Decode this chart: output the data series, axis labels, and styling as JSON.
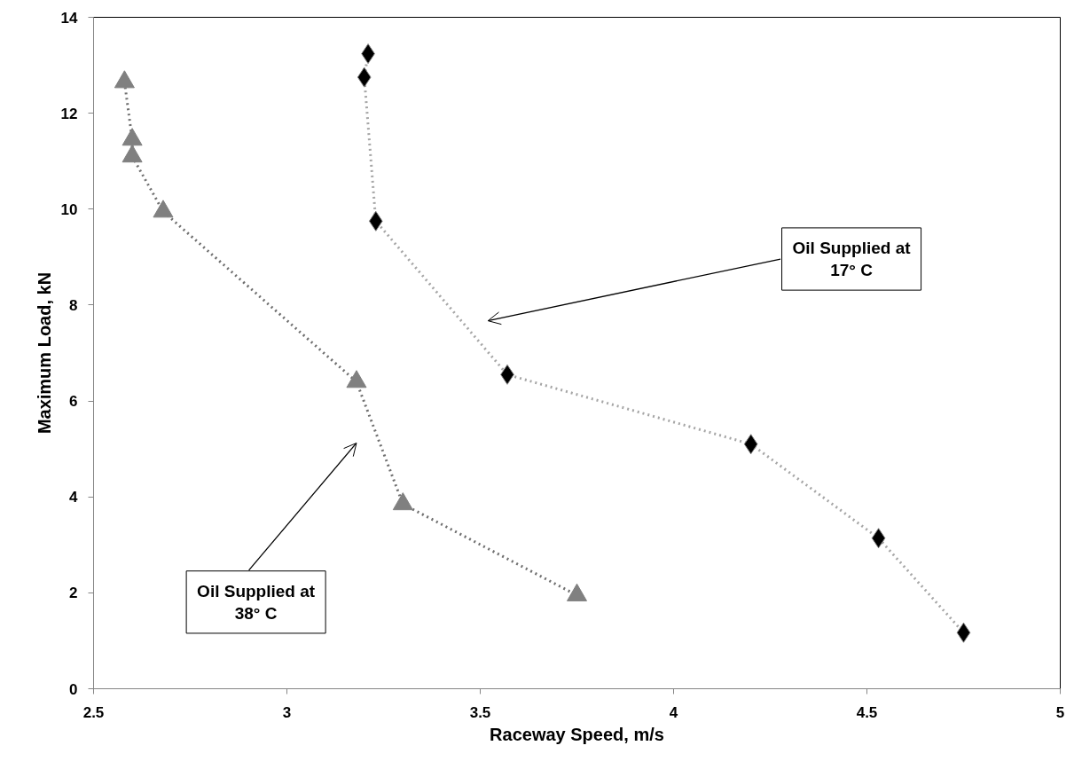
{
  "chart_data": {
    "type": "line",
    "xlabel": "Raceway Speed, m/s",
    "ylabel": "Maximum Load, kN",
    "xlim": [
      2.5,
      5
    ],
    "xticks": [
      2.5,
      3,
      3.5,
      4,
      4.5,
      5
    ],
    "ylim": [
      0,
      14
    ],
    "yticks": [
      0,
      2,
      4,
      6,
      8,
      10,
      12,
      14
    ],
    "grid": false,
    "line_style": "dotted",
    "series": [
      {
        "color": "#808080",
        "marker": "triangle",
        "x": [
          2.58,
          2.6,
          2.6,
          2.68,
          3.18,
          3.3,
          3.75
        ],
        "values": [
          12.65,
          11.45,
          11.1,
          9.95,
          6.4,
          3.85,
          1.95
        ]
      },
      {
        "color": "#000000",
        "marker": "diamond",
        "x": [
          3.21,
          3.2,
          3.23,
          3.57,
          4.2,
          4.53,
          4.75
        ],
        "values": [
          13.24,
          12.75,
          9.75,
          6.55,
          5.1,
          3.14,
          1.17
        ]
      }
    ],
    "annotations": [
      "Oil Supplied at\n17° C",
      "Oil Supplied at\n38° C"
    ]
  }
}
